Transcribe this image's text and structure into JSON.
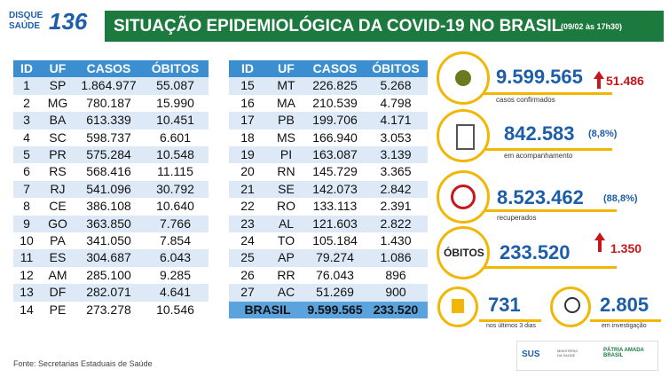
{
  "header": {
    "logo_top": "DISQUE",
    "logo_bottom": "SAÚDE",
    "logo_number": "136",
    "title": "SITUAÇÃO EPIDEMIOLÓGICA DA COVID-19 NO BRASIL",
    "date": "(09/02 às 17h30)"
  },
  "tables": [
    {
      "columns": [
        "ID",
        "UF",
        "CASOS",
        "ÓBITOS"
      ],
      "rows": [
        [
          "1",
          "SP",
          "1.864.977",
          "55.087"
        ],
        [
          "2",
          "MG",
          "780.187",
          "15.990"
        ],
        [
          "3",
          "BA",
          "613.339",
          "10.451"
        ],
        [
          "4",
          "SC",
          "598.737",
          "6.601"
        ],
        [
          "5",
          "PR",
          "575.284",
          "10.548"
        ],
        [
          "6",
          "RS",
          "568.416",
          "11.115"
        ],
        [
          "7",
          "RJ",
          "541.096",
          "30.792"
        ],
        [
          "8",
          "CE",
          "386.108",
          "10.640"
        ],
        [
          "9",
          "GO",
          "363.850",
          "7.766"
        ],
        [
          "10",
          "PA",
          "341.050",
          "7.854"
        ],
        [
          "11",
          "ES",
          "304.687",
          "6.043"
        ],
        [
          "12",
          "AM",
          "285.100",
          "9.285"
        ],
        [
          "13",
          "DF",
          "282.071",
          "4.641"
        ],
        [
          "14",
          "PE",
          "273.278",
          "10.546"
        ]
      ]
    },
    {
      "columns": [
        "ID",
        "UF",
        "CASOS",
        "ÓBITOS"
      ],
      "rows": [
        [
          "15",
          "MT",
          "226.825",
          "5.268"
        ],
        [
          "16",
          "MA",
          "210.539",
          "4.798"
        ],
        [
          "17",
          "PB",
          "199.706",
          "4.171"
        ],
        [
          "18",
          "MS",
          "166.940",
          "3.053"
        ],
        [
          "19",
          "PI",
          "163.087",
          "3.139"
        ],
        [
          "20",
          "RN",
          "145.729",
          "3.365"
        ],
        [
          "21",
          "SE",
          "142.073",
          "2.842"
        ],
        [
          "22",
          "RO",
          "133.113",
          "2.391"
        ],
        [
          "23",
          "AL",
          "121.603",
          "2.822"
        ],
        [
          "24",
          "TO",
          "105.184",
          "1.430"
        ],
        [
          "25",
          "AP",
          "79.274",
          "1.086"
        ],
        [
          "26",
          "RR",
          "76.043",
          "896"
        ],
        [
          "27",
          "AC",
          "51.269",
          "900"
        ]
      ],
      "total": [
        "BRASIL",
        "9.599.565",
        "233.520"
      ]
    }
  ],
  "cards": {
    "confirmed": {
      "value": "9.599.565",
      "delta": "51.486",
      "label": "casos confirmados"
    },
    "monitoring": {
      "value": "842.583",
      "percent": "(8,8%)",
      "label": "em acompanhamento"
    },
    "recovered": {
      "value": "8.523.462",
      "percent": "(88,8%)",
      "label": "recuperados"
    },
    "deaths": {
      "title": "ÓBITOS",
      "value": "233.520",
      "delta": "1.350"
    },
    "recent": {
      "value": "731",
      "label": "nos últimos 3 dias"
    },
    "investigation": {
      "value": "2.805",
      "label": "em investigação"
    }
  },
  "footer": {
    "source": "Fonte: Secretarias Estaduais de Saúde",
    "sus": "SUS",
    "ministry": "MINISTÉRIO DA SAÚDE",
    "brand": "PÁTRIA AMADA BRASIL"
  }
}
